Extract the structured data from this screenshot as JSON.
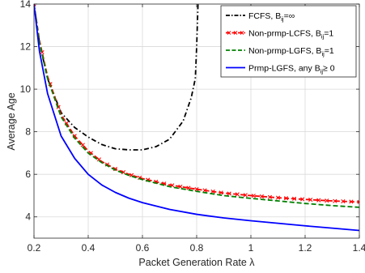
{
  "chart_data": {
    "type": "line",
    "xlabel": "Packet Generation Rate λ",
    "ylabel": "Average Age",
    "xlim": [
      0.2,
      1.4
    ],
    "ylim": [
      3,
      14
    ],
    "xticks": [
      0.2,
      0.4,
      0.6,
      0.8,
      1,
      1.2,
      1.4
    ],
    "xtick_labels": [
      "0.2",
      "0.4",
      "0.6",
      "0.8",
      "1",
      "1.2",
      "1.4"
    ],
    "yticks": [
      4,
      6,
      8,
      10,
      12,
      14
    ],
    "ytick_labels": [
      "4",
      "6",
      "8",
      "10",
      "12",
      "14"
    ],
    "grid": true,
    "legend_position": "top-right",
    "series": [
      {
        "legend": {
          "main": "FCFS, B",
          "sub": "ij",
          "suffix": "=∞"
        },
        "color": "#000000",
        "style": "dashdot",
        "x": [
          0.2,
          0.22,
          0.25,
          0.3,
          0.35,
          0.4,
          0.45,
          0.5,
          0.55,
          0.6,
          0.65,
          0.7,
          0.75,
          0.78,
          0.795,
          0.8,
          0.803,
          0.805
        ],
        "y": [
          14,
          12.2,
          10.5,
          8.9,
          8.2,
          7.75,
          7.4,
          7.2,
          7.15,
          7.15,
          7.3,
          7.65,
          8.5,
          9.6,
          10.5,
          12.0,
          13.2,
          14
        ]
      },
      {
        "legend": {
          "main": "Non-prmp-LCFS, B",
          "sub": "ij",
          "suffix": "=1"
        },
        "color": "#ff0000",
        "style": "dashed-marker",
        "x": [
          0.2,
          0.22,
          0.25,
          0.3,
          0.35,
          0.4,
          0.45,
          0.5,
          0.55,
          0.6,
          0.7,
          0.8,
          0.9,
          1.0,
          1.1,
          1.2,
          1.3,
          1.4
        ],
        "y": [
          14,
          12.3,
          10.6,
          8.8,
          7.8,
          7.1,
          6.6,
          6.25,
          6.0,
          5.8,
          5.5,
          5.3,
          5.12,
          5.0,
          4.9,
          4.82,
          4.75,
          4.7
        ]
      },
      {
        "legend": {
          "main": "Non-prmp-LGFS, B",
          "sub": "ij",
          "suffix": "=1"
        },
        "color": "#008000",
        "style": "dashed",
        "x": [
          0.2,
          0.22,
          0.25,
          0.3,
          0.35,
          0.4,
          0.45,
          0.5,
          0.55,
          0.6,
          0.7,
          0.8,
          0.9,
          1.0,
          1.1,
          1.2,
          1.3,
          1.4
        ],
        "y": [
          14,
          12.2,
          10.5,
          8.7,
          7.7,
          7.0,
          6.55,
          6.2,
          5.95,
          5.75,
          5.42,
          5.2,
          5.0,
          4.87,
          4.75,
          4.63,
          4.53,
          4.45
        ]
      },
      {
        "legend": {
          "main": "Prmp-LGFS, any B",
          "sub": "ij",
          "suffix": "≥ 0"
        },
        "color": "#0000ff",
        "style": "solid",
        "x": [
          0.2,
          0.22,
          0.25,
          0.3,
          0.35,
          0.4,
          0.45,
          0.5,
          0.55,
          0.6,
          0.7,
          0.8,
          0.9,
          1.0,
          1.1,
          1.2,
          1.3,
          1.4
        ],
        "y": [
          14,
          11.8,
          9.8,
          7.8,
          6.75,
          6.0,
          5.5,
          5.15,
          4.88,
          4.67,
          4.35,
          4.12,
          3.95,
          3.82,
          3.7,
          3.58,
          3.47,
          3.36
        ]
      }
    ]
  }
}
